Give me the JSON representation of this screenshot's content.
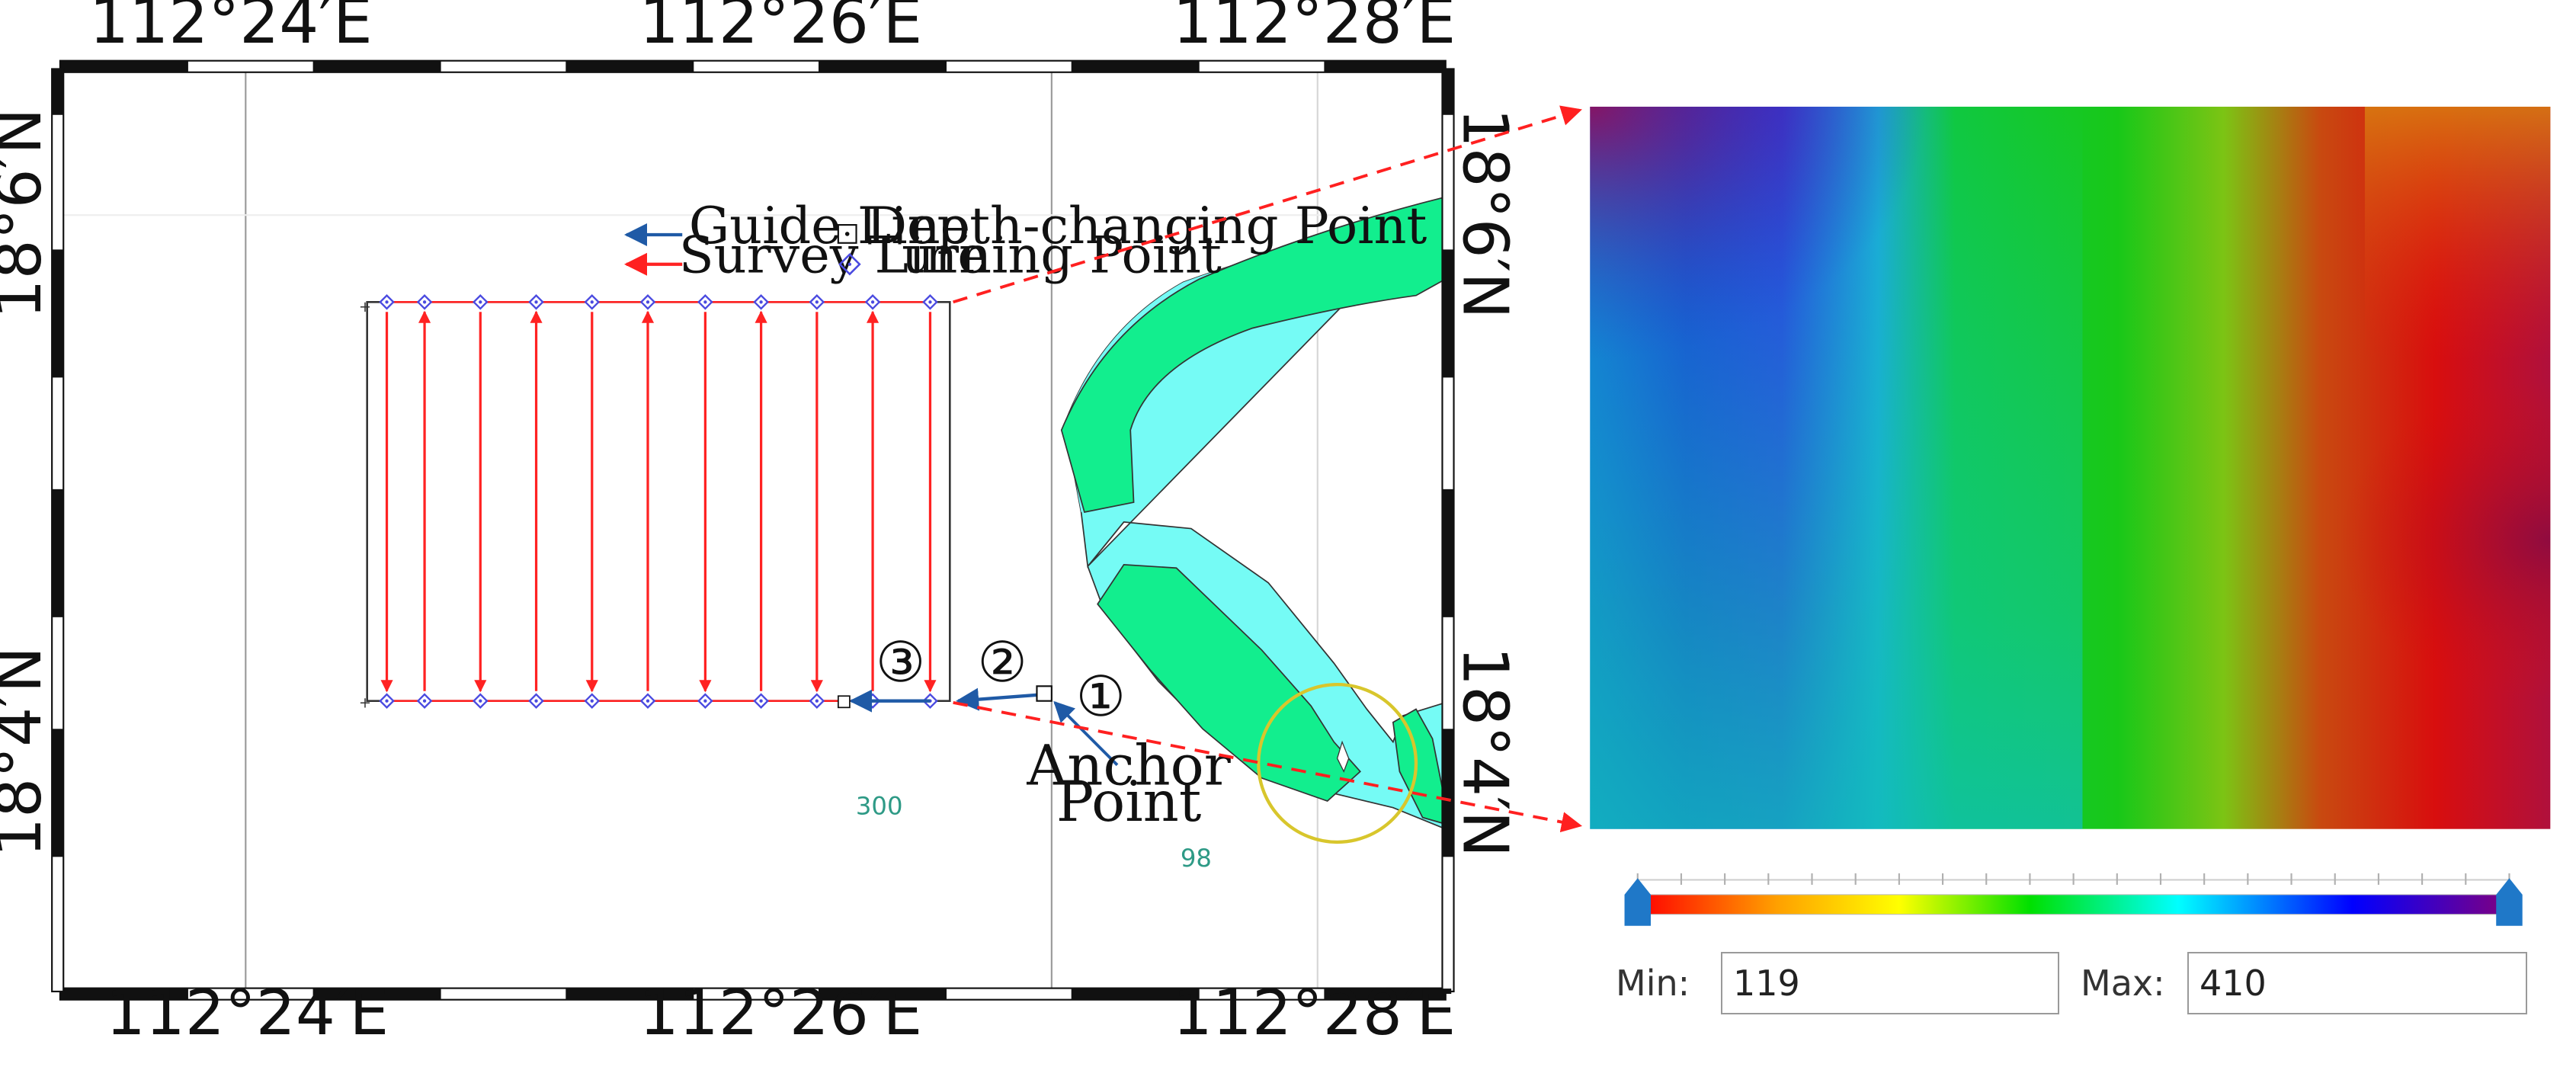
{
  "map": {
    "lon_labels": [
      "112°24′E",
      "112°26′E",
      "112°28′E"
    ],
    "lat_labels": [
      "18°6′N",
      "18°4′N"
    ],
    "legend": {
      "guide_line": "Guide Line",
      "depth_changing_point": "Depth-changing Point",
      "survey_line": "Survey Line",
      "turning_point": "Turning Point"
    },
    "annotations": {
      "marker_1": "①",
      "marker_2": "②",
      "marker_3": "③",
      "anchor_line1": "Anchor",
      "anchor_line2": "Point"
    },
    "soundings": [
      "300",
      "98"
    ],
    "colors": {
      "survey_line": "#ff2222",
      "guide_line": "#1f5aa6",
      "turning_point": "#4a4ae0",
      "shoal_green": "#12ee8e",
      "shoal_cyan": "#75fbf5",
      "highlight_circle": "#d8c62c",
      "zoom_arrow": "#ff2020"
    }
  },
  "heatmap": {
    "colorbar_colors": [
      "#ff0000",
      "#ffa000",
      "#ffff00",
      "#00e000",
      "#00ffff",
      "#0000ff",
      "#800080"
    ],
    "min_label": "Min:",
    "min_value": "119",
    "max_label": "Max:",
    "max_value": "410"
  }
}
